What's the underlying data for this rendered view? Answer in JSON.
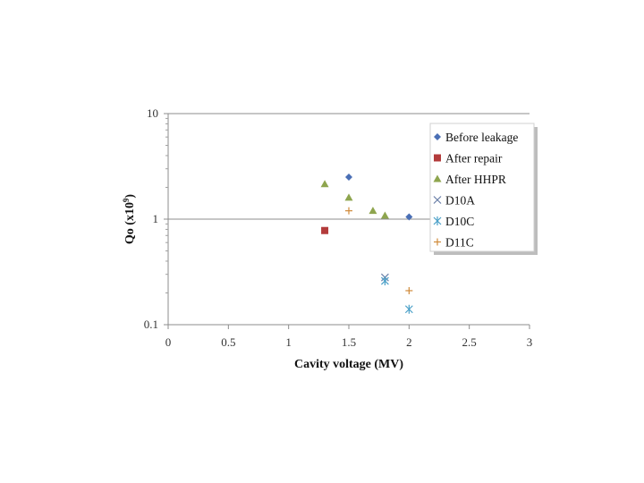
{
  "chart_data": {
    "type": "scatter",
    "title": "",
    "xlabel": "Cavity voltage (MV)",
    "ylabel_main": "Qo (x10",
    "ylabel_sup": "9",
    "ylabel_close": ")",
    "xlim": [
      0,
      3
    ],
    "ylim": [
      0.1,
      10
    ],
    "y_scale": "log",
    "x_ticks": [
      "0",
      "0.5",
      "1",
      "1.5",
      "2",
      "2.5",
      "3"
    ],
    "y_ticks": [
      "0.1",
      "1",
      "10"
    ],
    "grid": "horizontal",
    "legend_position": "top-right",
    "series": [
      {
        "name": "Before leakage",
        "marker": "diamond",
        "color": "#4a6fb5",
        "points": [
          [
            1.5,
            2.5
          ],
          [
            2.0,
            1.05
          ]
        ]
      },
      {
        "name": "After repair",
        "marker": "square",
        "color": "#b33b3b",
        "points": [
          [
            1.3,
            0.78
          ]
        ]
      },
      {
        "name": "After HHPR",
        "marker": "triangle",
        "color": "#8ea54e",
        "points": [
          [
            1.3,
            2.15
          ],
          [
            1.5,
            1.6
          ],
          [
            1.7,
            1.2
          ],
          [
            1.8,
            1.08
          ]
        ]
      },
      {
        "name": "D10A",
        "marker": "x",
        "color": "#6a7fa8",
        "points": [
          [
            1.8,
            0.28
          ]
        ]
      },
      {
        "name": "D10C",
        "marker": "asterisk",
        "color": "#4aa0c8",
        "points": [
          [
            1.8,
            0.26
          ],
          [
            2.0,
            0.14
          ]
        ]
      },
      {
        "name": "D11C",
        "marker": "plus",
        "color": "#d08a3a",
        "points": [
          [
            1.5,
            1.2
          ],
          [
            2.0,
            0.21
          ]
        ]
      }
    ]
  }
}
